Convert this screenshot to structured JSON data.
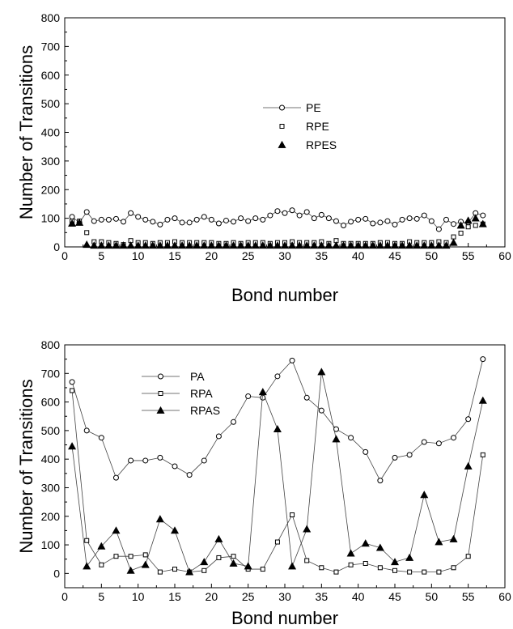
{
  "chart_data": [
    {
      "type": "line",
      "xlabel": "Bond number",
      "ylabel": "Number of Transitions",
      "xlim": [
        0,
        60
      ],
      "ylim": [
        0,
        800
      ],
      "xticks": [
        0,
        5,
        10,
        15,
        20,
        25,
        30,
        35,
        40,
        45,
        50,
        55,
        60
      ],
      "yticks": [
        0,
        100,
        200,
        300,
        400,
        500,
        600,
        700,
        800
      ],
      "grid": false,
      "legend_position": "center",
      "series": [
        {
          "name": "PE",
          "marker": "circle",
          "line": true,
          "x": [
            1,
            2,
            3,
            4,
            5,
            6,
            7,
            8,
            9,
            10,
            11,
            12,
            13,
            14,
            15,
            16,
            17,
            18,
            19,
            20,
            21,
            22,
            23,
            24,
            25,
            26,
            27,
            28,
            29,
            30,
            31,
            32,
            33,
            34,
            35,
            36,
            37,
            38,
            39,
            40,
            41,
            42,
            43,
            44,
            45,
            46,
            47,
            48,
            49,
            50,
            51,
            52,
            53,
            54,
            55,
            56,
            57
          ],
          "values": [
            105,
            85,
            122,
            90,
            95,
            95,
            98,
            88,
            118,
            105,
            95,
            88,
            78,
            95,
            100,
            85,
            85,
            95,
            105,
            95,
            82,
            92,
            88,
            100,
            90,
            100,
            95,
            110,
            125,
            118,
            128,
            110,
            122,
            100,
            112,
            100,
            90,
            75,
            88,
            95,
            98,
            82,
            85,
            90,
            78,
            95,
            100,
            98,
            110,
            90,
            62,
            95,
            80,
            88,
            85,
            118,
            110
          ]
        },
        {
          "name": "RPE",
          "marker": "square",
          "line": false,
          "x": [
            1,
            2,
            3,
            4,
            5,
            6,
            7,
            8,
            9,
            10,
            11,
            12,
            13,
            14,
            15,
            16,
            17,
            18,
            19,
            20,
            21,
            22,
            23,
            24,
            25,
            26,
            27,
            28,
            29,
            30,
            31,
            32,
            33,
            34,
            35,
            36,
            37,
            38,
            39,
            40,
            41,
            42,
            43,
            44,
            45,
            46,
            47,
            48,
            49,
            50,
            51,
            52,
            53,
            54,
            55,
            56,
            57
          ],
          "values": [
            90,
            90,
            50,
            18,
            18,
            15,
            12,
            8,
            22,
            15,
            15,
            12,
            15,
            15,
            18,
            15,
            15,
            15,
            15,
            15,
            12,
            12,
            15,
            12,
            15,
            15,
            15,
            12,
            15,
            15,
            18,
            15,
            15,
            15,
            18,
            12,
            22,
            12,
            12,
            12,
            12,
            12,
            15,
            15,
            12,
            12,
            18,
            15,
            15,
            15,
            18,
            15,
            35,
            48,
            70,
            75,
            80
          ]
        },
        {
          "name": "RPES",
          "marker": "triangle-filled",
          "line": false,
          "x": [
            1,
            2,
            3,
            4,
            5,
            6,
            7,
            8,
            9,
            10,
            11,
            12,
            13,
            14,
            15,
            16,
            17,
            18,
            19,
            20,
            21,
            22,
            23,
            24,
            25,
            26,
            27,
            28,
            29,
            30,
            31,
            32,
            33,
            34,
            35,
            36,
            37,
            38,
            39,
            40,
            41,
            42,
            43,
            44,
            45,
            46,
            47,
            48,
            49,
            50,
            51,
            52,
            53,
            54,
            55,
            56,
            57
          ],
          "values": [
            82,
            85,
            8,
            5,
            5,
            5,
            5,
            5,
            5,
            5,
            5,
            5,
            5,
            5,
            5,
            5,
            5,
            5,
            5,
            5,
            5,
            5,
            5,
            5,
            5,
            5,
            5,
            5,
            5,
            5,
            5,
            5,
            5,
            5,
            5,
            5,
            5,
            5,
            5,
            5,
            5,
            5,
            5,
            5,
            5,
            5,
            5,
            5,
            5,
            5,
            5,
            5,
            15,
            75,
            92,
            100,
            80
          ]
        }
      ]
    },
    {
      "type": "line",
      "xlabel": "Bond number",
      "ylabel": "Number of Transitions",
      "xlim": [
        0,
        60
      ],
      "ylim": [
        -50,
        800
      ],
      "xticks": [
        0,
        5,
        10,
        15,
        20,
        25,
        30,
        35,
        40,
        45,
        50,
        55,
        60
      ],
      "yticks": [
        0,
        100,
        200,
        300,
        400,
        500,
        600,
        700,
        800
      ],
      "grid": false,
      "legend_position": "top-left",
      "series": [
        {
          "name": "PA",
          "marker": "circle",
          "line": true,
          "x": [
            1,
            3,
            5,
            7,
            9,
            11,
            13,
            15,
            17,
            19,
            21,
            23,
            25,
            27,
            29,
            31,
            33,
            35,
            37,
            39,
            41,
            43,
            45,
            47,
            49,
            51,
            53,
            55,
            57
          ],
          "values": [
            670,
            500,
            475,
            335,
            395,
            395,
            405,
            375,
            345,
            395,
            480,
            530,
            620,
            615,
            690,
            745,
            615,
            570,
            505,
            475,
            425,
            325,
            405,
            415,
            460,
            455,
            475,
            540,
            750
          ]
        },
        {
          "name": "RPA",
          "marker": "square",
          "line": true,
          "x": [
            1,
            3,
            5,
            7,
            9,
            11,
            13,
            15,
            17,
            19,
            21,
            23,
            25,
            27,
            29,
            31,
            33,
            35,
            37,
            39,
            41,
            43,
            45,
            47,
            49,
            51,
            53,
            55,
            57
          ],
          "values": [
            640,
            115,
            30,
            60,
            60,
            65,
            5,
            15,
            5,
            10,
            55,
            60,
            15,
            15,
            110,
            205,
            45,
            20,
            5,
            30,
            35,
            20,
            10,
            5,
            5,
            5,
            20,
            60,
            415
          ]
        },
        {
          "name": "RPAS",
          "marker": "triangle-filled",
          "line": true,
          "x": [
            1,
            3,
            5,
            7,
            9,
            11,
            13,
            15,
            17,
            19,
            21,
            23,
            25,
            27,
            29,
            31,
            33,
            35,
            37,
            39,
            41,
            43,
            45,
            47,
            49,
            51,
            53,
            55,
            57
          ],
          "values": [
            445,
            25,
            95,
            150,
            10,
            30,
            190,
            150,
            5,
            40,
            120,
            35,
            25,
            635,
            505,
            25,
            155,
            705,
            470,
            70,
            105,
            90,
            40,
            55,
            275,
            110,
            120,
            375,
            605
          ]
        }
      ]
    }
  ]
}
